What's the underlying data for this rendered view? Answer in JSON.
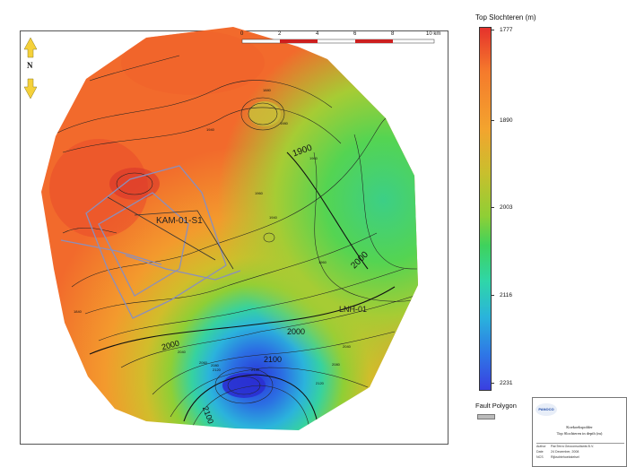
{
  "map": {
    "scale_labels": [
      "0",
      "2",
      "4",
      "6",
      "8",
      "10 km"
    ],
    "well_labels": [
      {
        "name": "KAM-01-S1"
      },
      {
        "name": "LNH-01"
      }
    ],
    "contour_labels": [
      "1880",
      "1980",
      "1900",
      "1940",
      "1960",
      "1960",
      "2000",
      "2000",
      "2000",
      "2040",
      "2060",
      "2080",
      "2100",
      "2120",
      "2140",
      "2120",
      "2100",
      "2040",
      "2080",
      "1940",
      "1960",
      "1840"
    ],
    "north_letter": "N",
    "axis_ticks_top": [
      "",
      "",
      "",
      ""
    ],
    "axis_ticks_left": [
      "",
      "",
      "",
      ""
    ],
    "colors": {
      "shallow": "#e5322c",
      "mid": "#c9bf2d",
      "deep": "#3a3fe0",
      "fault": "#8a8fbd",
      "north_arrow": "#f5d13a"
    }
  },
  "legend": {
    "title": "Top Slochteren (m)",
    "values": [
      "1777",
      "1890",
      "2003",
      "2116",
      "2231"
    ],
    "fault_label": "Fault Polygon"
  },
  "info_box": {
    "logo": "PANOCO",
    "title_line1": "Koekoekspolder",
    "title_line2": "Top Slochteren in depth (m)",
    "rows": [
      {
        "k": "Author",
        "v": "PanTerra Geoconsultants B.V."
      },
      {
        "k": "Date",
        "v": "24 December, 2008"
      },
      {
        "k": "NCS",
        "v": "Rijksdriehoekstelsel"
      }
    ]
  }
}
